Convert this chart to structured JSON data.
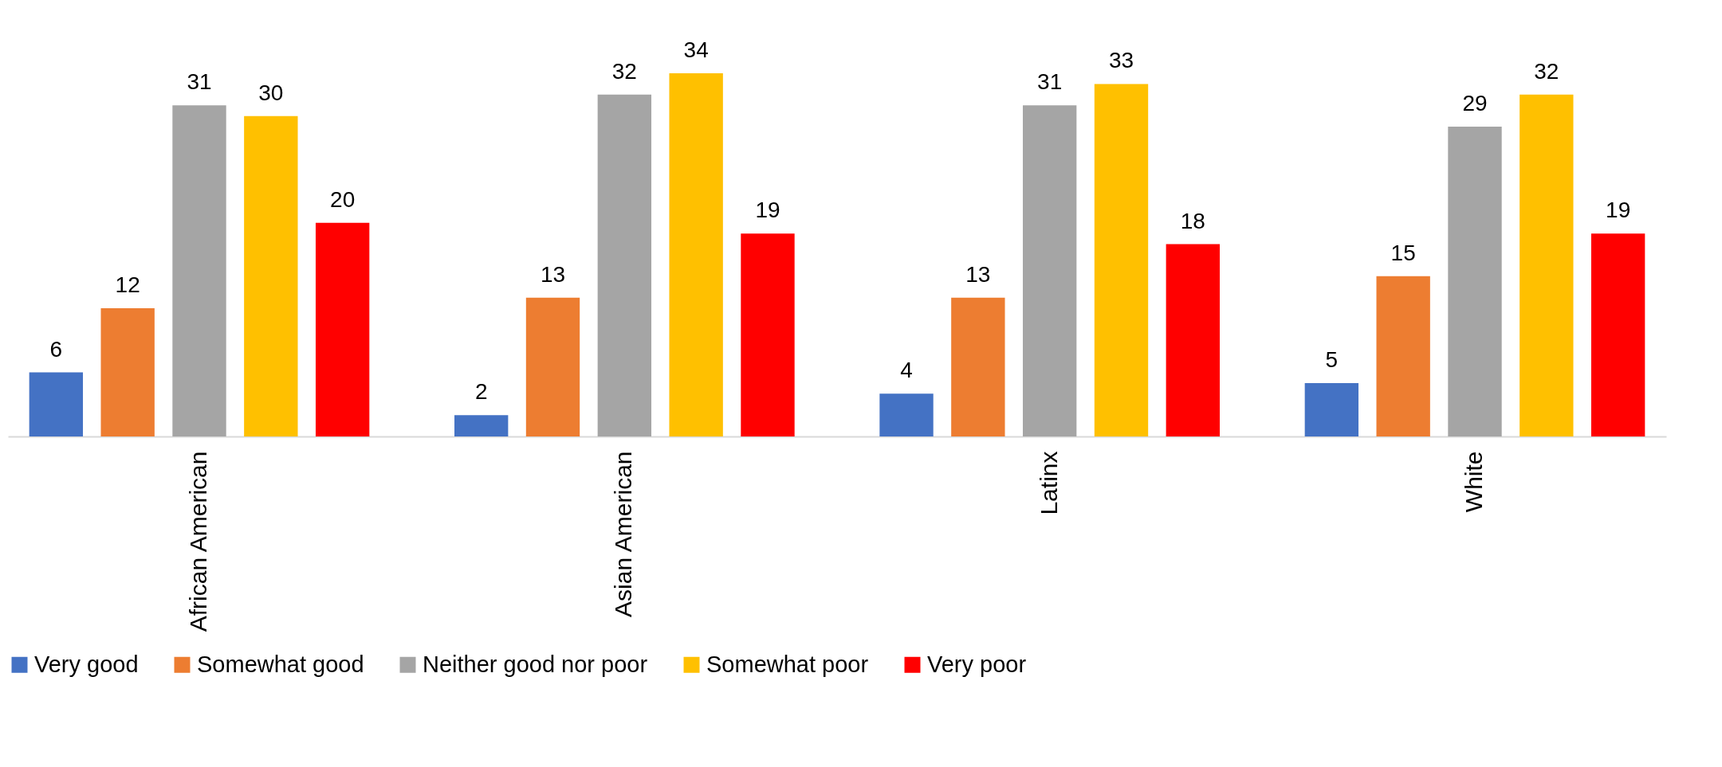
{
  "chart_data": {
    "type": "bar",
    "categories": [
      "African American",
      "Asian American",
      "Latinx",
      "White"
    ],
    "series": [
      {
        "name": "Very good",
        "color": "#4472c4",
        "values": [
          6,
          2,
          4,
          5
        ]
      },
      {
        "name": "Somewhat good",
        "color": "#ed7d31",
        "values": [
          12,
          13,
          13,
          15
        ]
      },
      {
        "name": "Neither good nor poor",
        "color": "#a5a5a5",
        "values": [
          31,
          32,
          31,
          29
        ]
      },
      {
        "name": "Somewhat poor",
        "color": "#ffc000",
        "values": [
          30,
          34,
          33,
          32
        ]
      },
      {
        "name": "Very poor",
        "color": "#ff0000",
        "values": [
          20,
          19,
          18,
          19
        ]
      }
    ],
    "data_labels": true,
    "legend": "bottom",
    "grid": false,
    "tick_labels": "x"
  }
}
